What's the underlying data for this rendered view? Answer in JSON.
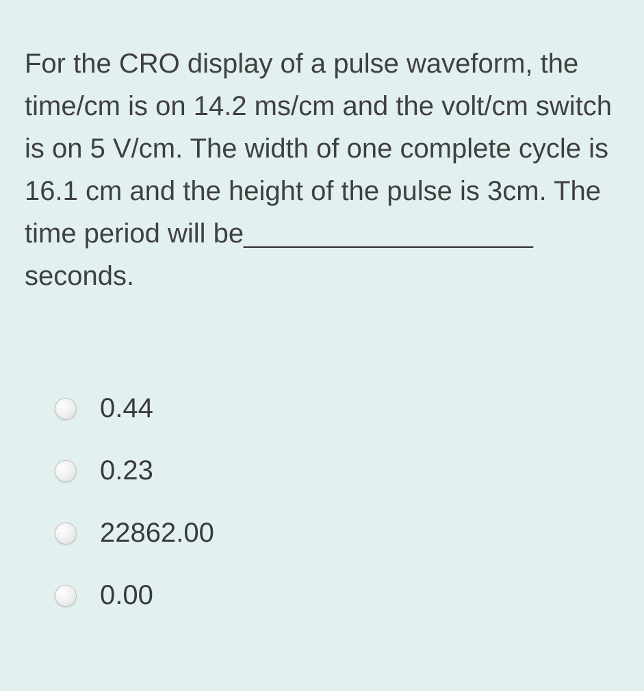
{
  "question": {
    "text": "For the CRO display of a pulse waveform, the time/cm is on 14.2 ms/cm and the volt/cm switch is on 5 V/cm. The width of one complete cycle is 16.1 cm and the height of the pulse is 3cm. The time period will be___________________ seconds.",
    "fontsize": 40,
    "color": "#404040"
  },
  "options": [
    {
      "label": "0.44",
      "selected": false
    },
    {
      "label": "0.23",
      "selected": false
    },
    {
      "label": "22862.00",
      "selected": false
    },
    {
      "label": "0.00",
      "selected": false
    }
  ],
  "styling": {
    "background_color": "#e2f0f0",
    "option_fontsize": 40,
    "option_color": "#3a3a3a",
    "radio_size": 32,
    "radio_gradient_start": "#ffffff",
    "radio_gradient_end": "#dcdcdc",
    "radio_border": "#bfbfbf"
  }
}
